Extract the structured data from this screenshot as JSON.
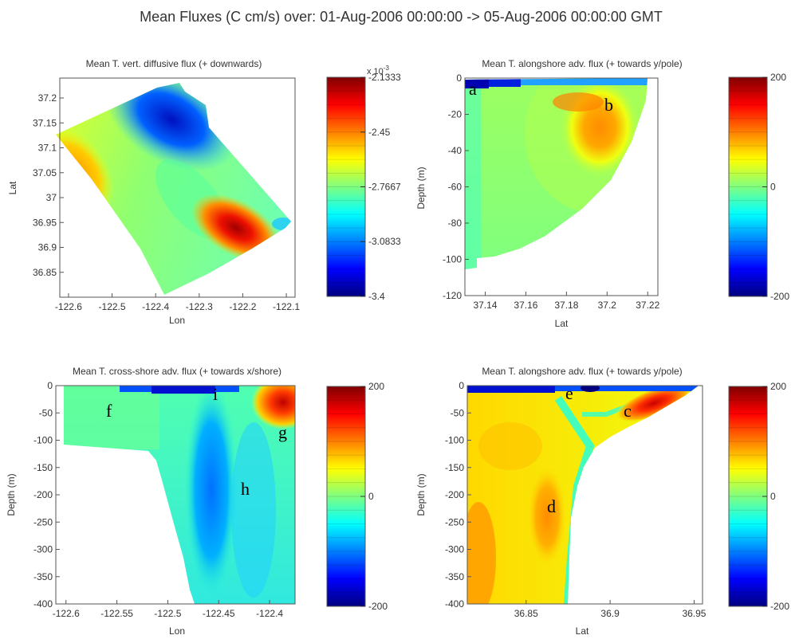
{
  "suptitle": "Mean Fluxes (C cm/s) over:   01-Aug-2006 00:00:00  ->  05-Aug-2006 00:00:00 GMT",
  "colormap": [
    "#00007f",
    "#0000c8",
    "#0010ff",
    "#0050ff",
    "#0090ff",
    "#00d0ff",
    "#30ffcf",
    "#70ff8f",
    "#b0ff4f",
    "#efff10",
    "#ffcc00",
    "#ff8c00",
    "#ff4c00",
    "#f00d00",
    "#b00000",
    "#7f0000"
  ],
  "chart_data": [
    {
      "type": "heatmap",
      "title": "Mean T. vert. diffusive flux  (+ downwards)",
      "xlabel": "Lon",
      "ylabel": "Lat",
      "xlim": [
        -122.62,
        -122.08
      ],
      "ylim": [
        36.8,
        37.24
      ],
      "xticks": [
        "-122.6",
        "-122.5",
        "-122.4",
        "-122.3",
        "-122.2",
        "-122.1"
      ],
      "yticks": [
        "37.2",
        "37.15",
        "37.1",
        "37.05",
        "37",
        "36.95",
        "36.9",
        "36.85"
      ],
      "colorbar": {
        "range": [
          -3.4,
          -2.1333
        ],
        "ticks": [
          "-2.1333",
          "-2.45",
          "-2.7667",
          "-3.0833",
          "-3.4"
        ],
        "exponent": "x 10",
        "exponent_power": "-3"
      },
      "features": [
        {
          "kind": "min",
          "lon": -122.36,
          "lat": 37.2,
          "value": -3.33
        },
        {
          "kind": "high",
          "lon": -122.57,
          "lat": 37.06,
          "value": -2.5
        },
        {
          "kind": "max",
          "lon": -122.22,
          "lat": 36.92,
          "value": -2.15
        }
      ]
    },
    {
      "type": "heatmap",
      "title": "Mean T. alongshore adv. flux  (+ towards y/pole)",
      "xlabel": "Lat",
      "ylabel": "Depth (m)",
      "xlim": [
        37.13,
        37.225
      ],
      "ylim": [
        -120,
        0
      ],
      "xticks": [
        "37.14",
        "37.16",
        "37.18",
        "37.2",
        "37.22"
      ],
      "yticks": [
        "0",
        "-20",
        "-40",
        "-60",
        "-80",
        "-100",
        "-120"
      ],
      "colorbar": {
        "range": [
          -200,
          200
        ],
        "ticks": [
          "200",
          "0",
          "-200"
        ]
      },
      "annotations": [
        "a",
        "b"
      ],
      "features": [
        {
          "kind": "min",
          "x": 37.14,
          "depth": -3,
          "value": -200
        },
        {
          "kind": "max",
          "x": 37.188,
          "depth": -25,
          "value": 80
        }
      ]
    },
    {
      "type": "heatmap",
      "title": "Mean T. cross-shore adv. flux  (+ towards x/shore)",
      "xlabel": "Lon",
      "ylabel": "Depth (m)",
      "xlim": [
        -122.61,
        -122.375
      ],
      "ylim": [
        -400,
        0
      ],
      "xticks": [
        "-122.6",
        "-122.55",
        "-122.5",
        "-122.45",
        "-122.4"
      ],
      "yticks": [
        "0",
        "-50",
        "-100",
        "-150",
        "-200",
        "-250",
        "-300",
        "-350",
        "-400"
      ],
      "colorbar": {
        "range": [
          -200,
          200
        ],
        "ticks": [
          "200",
          "0",
          "-200"
        ]
      },
      "annotations": [
        "f",
        "i",
        "g",
        "h"
      ],
      "features": [
        {
          "kind": "min",
          "x": -122.47,
          "depth": -170,
          "value": -110
        },
        {
          "kind": "max",
          "x": -122.38,
          "depth": -20,
          "value": 200
        }
      ]
    },
    {
      "type": "heatmap",
      "title": "Mean T. alongshore adv. flux  (+ towards y/pole)",
      "xlabel": "Lat",
      "ylabel": "Depth (m)",
      "xlim": [
        36.815,
        36.955
      ],
      "ylim": [
        -400,
        0
      ],
      "xticks": [
        "36.85",
        "36.9",
        "36.95"
      ],
      "yticks": [
        "0",
        "-50",
        "-100",
        "-150",
        "-200",
        "-250",
        "-300",
        "-350",
        "-400"
      ],
      "colorbar": {
        "range": [
          -200,
          200
        ],
        "ticks": [
          "200",
          "0",
          "-200"
        ]
      },
      "annotations": [
        "e",
        "c",
        "d"
      ],
      "features": [
        {
          "kind": "max",
          "x": 36.92,
          "depth": -30,
          "value": 180
        },
        {
          "kind": "high",
          "x": 36.86,
          "depth": -230,
          "value": 90
        },
        {
          "kind": "min",
          "x": 36.888,
          "depth": -3,
          "value": -200
        }
      ]
    }
  ]
}
